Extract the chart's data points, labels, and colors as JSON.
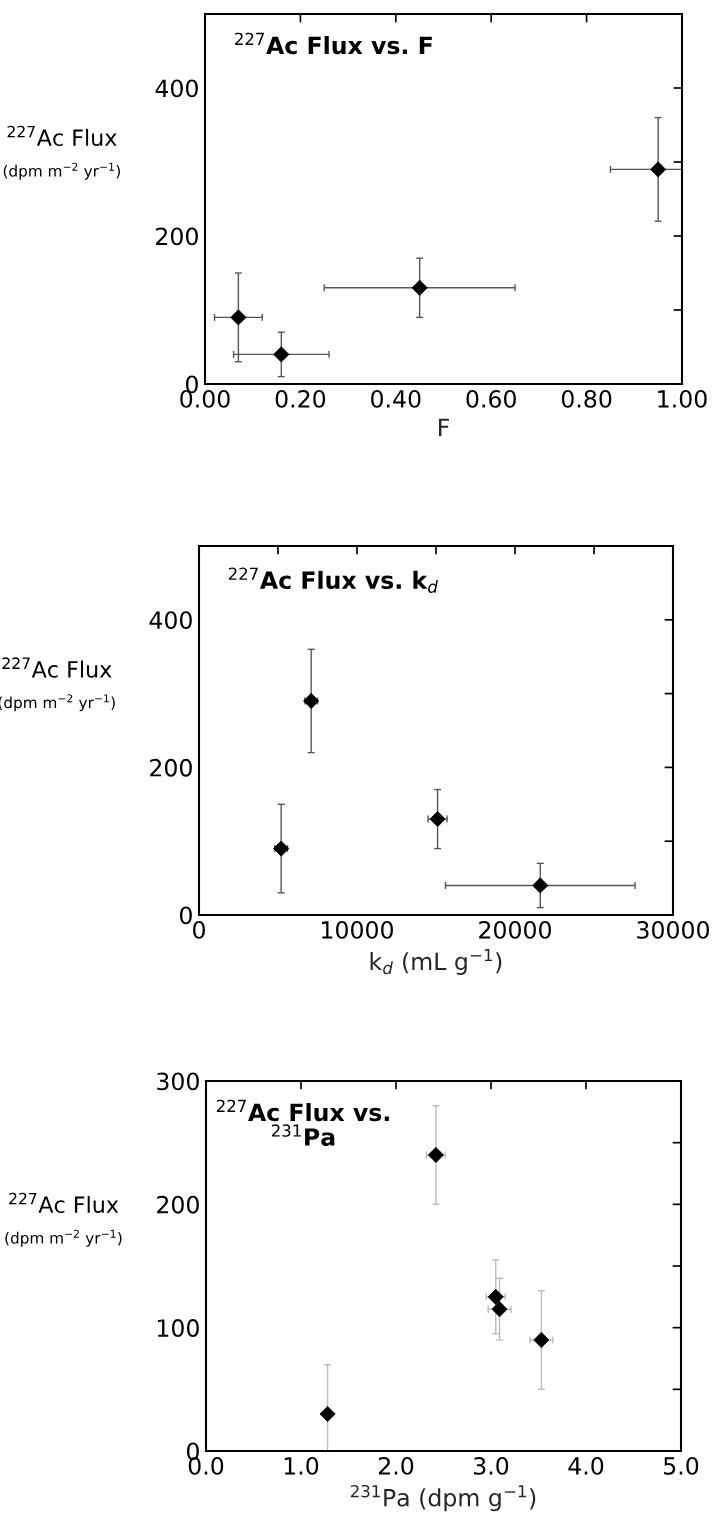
{
  "chart_data": [
    {
      "type": "scatter",
      "title": "$^{227}$Ac Flux vs. F",
      "xlabel": "F",
      "ylabel": "$^{227}$Ac Flux\n(dpm m$^{−2}$ yr$^{−1}$)",
      "marker": "diamond",
      "grid": false,
      "x": [
        0.07,
        0.16,
        0.45,
        0.95
      ],
      "values": [
        90,
        40,
        130,
        290
      ],
      "color": "#000000",
      "errors": [
        60,
        30,
        40,
        70
      ],
      "xerrors": [
        0.05,
        0.1,
        0.2,
        [
          0.85,
          1.0
        ]
      ],
      "xlim": [
        0,
        1
      ],
      "xticks": [
        {
          "value": 0,
          "label": "0.00"
        },
        {
          "value": 0.2,
          "label": "0.20"
        },
        {
          "value": 0.4,
          "label": "0.40"
        },
        {
          "value": 0.6,
          "label": "0.60"
        },
        {
          "value": 0.8,
          "label": "0.80"
        },
        {
          "value": 1,
          "label": "1.00"
        }
      ],
      "ylim": [
        0,
        500
      ],
      "yticks": [
        0,
        {
          "value": 100,
          "label": null
        },
        200,
        {
          "value": 300,
          "label": null
        },
        400
      ]
    },
    {
      "type": "scatter",
      "title": "$^{227}$Ac Flux vs. k$_{d}$",
      "xlabel": "k$_{d}$ (mL g$^{−1}$)",
      "ylabel": "$^{227}$Ac Flux\n(dpm m$^{−2}$ yr$^{−1}$)",
      "marker": "diamond",
      "grid": false,
      "x": [
        5200,
        7100,
        15100,
        21600
      ],
      "values": [
        90,
        290,
        130,
        40
      ],
      "color": "#000000",
      "errors": [
        60,
        70,
        40,
        30
      ],
      "xerrors": [
        400,
        400,
        600,
        [
          15600,
          27600
        ]
      ],
      "xlim": [
        0,
        30000
      ],
      "xticks": [
        0,
        {
          "value": 5000,
          "label": null
        },
        10000,
        {
          "value": 15000,
          "label": null
        },
        20000,
        {
          "value": 25000,
          "label": null
        },
        30000
      ],
      "ylim": [
        0,
        500
      ],
      "yticks": [
        0,
        {
          "value": 100,
          "label": null
        },
        200,
        {
          "value": 300,
          "label": null
        },
        400
      ]
    },
    {
      "type": "scatter",
      "title": "$^{227}$Ac Flux vs.\n$^{231}$Pa",
      "xlabel": "$^{231}$Pa (dpm g$^{−1}$)",
      "ylabel": "$^{227}$Ac Flux\n(dpm m$^{−2}$ yr$^{−1}$)",
      "marker": "diamond",
      "grid": false,
      "x": [
        1.28,
        2.42,
        3.05,
        3.09,
        3.53
      ],
      "values": [
        30,
        240,
        125,
        115,
        90
      ],
      "color": "#000000",
      "errors": [
        [
          0,
          70
        ],
        40,
        30,
        25,
        40
      ],
      "xerrors": [
        null,
        0.1,
        0.1,
        0.12,
        0.12
      ],
      "xlim": [
        0,
        5
      ],
      "xticks": [
        {
          "value": 0,
          "label": "0.0"
        },
        {
          "value": 1,
          "label": "1.0"
        },
        {
          "value": 2,
          "label": "2.0"
        },
        {
          "value": 3,
          "label": "3.0"
        },
        {
          "value": 4,
          "label": "4.0"
        },
        {
          "value": 5,
          "label": "5.0"
        }
      ],
      "ylim": [
        0,
        300
      ],
      "yticks": [
        0,
        {
          "value": 50,
          "label": null
        },
        100,
        {
          "value": 150,
          "label": null
        },
        200,
        {
          "value": 250,
          "label": null
        },
        300
      ]
    }
  ]
}
